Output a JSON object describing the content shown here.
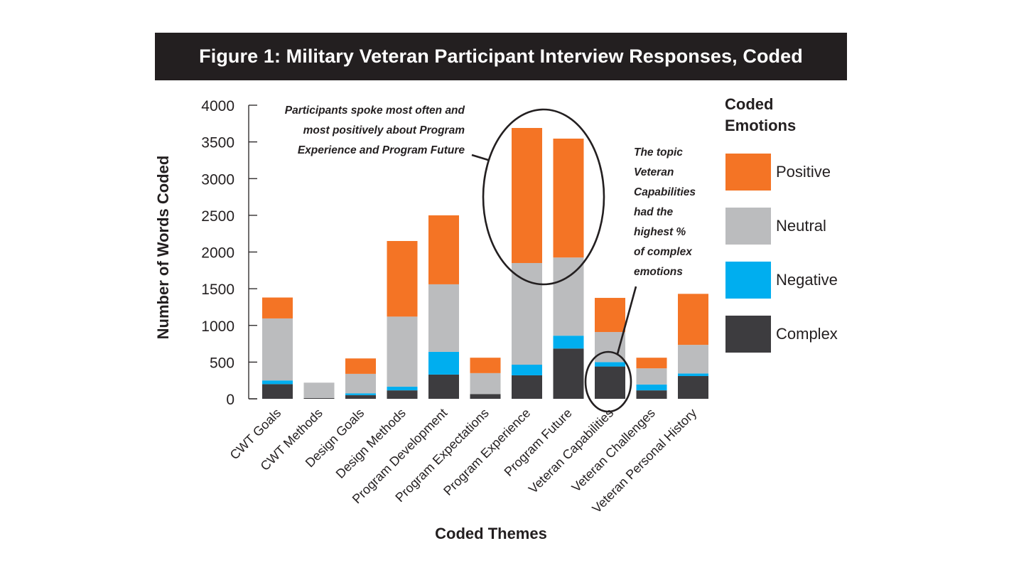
{
  "chart_data": {
    "type": "bar",
    "stacked": true,
    "title": "Figure 1: Military Veteran Participant Interview Responses, Coded",
    "xlabel": "Coded Themes",
    "ylabel": "Number of Words Coded",
    "ylim": [
      0,
      4000
    ],
    "yticks": [
      0,
      500,
      1000,
      1500,
      2000,
      2500,
      3000,
      3500,
      4000
    ],
    "grid": false,
    "categories": [
      "CWT Goals",
      "CWT Methods",
      "Design Goals",
      "Design Methods",
      "Program Development",
      "Program Expectations",
      "Program Experience",
      "Program Future",
      "Veteran Capabilities",
      "Veteran Challenges",
      "Veteran Personal History"
    ],
    "series": [
      {
        "name": "Complex",
        "color": "#3d3c3f",
        "values": [
          200,
          10,
          50,
          115,
          330,
          65,
          320,
          685,
          440,
          115,
          310
        ]
      },
      {
        "name": "Negative",
        "color": "#00aeef",
        "values": [
          50,
          0,
          25,
          50,
          310,
          0,
          145,
          175,
          60,
          80,
          35
        ]
      },
      {
        "name": "Neutral",
        "color": "#bbbcbe",
        "values": [
          845,
          210,
          265,
          955,
          920,
          285,
          1385,
          1065,
          410,
          220,
          390
        ]
      },
      {
        "name": "Positive",
        "color": "#f47425",
        "values": [
          285,
          0,
          210,
          1030,
          940,
          210,
          1840,
          1620,
          465,
          145,
          695
        ]
      }
    ],
    "legend": {
      "title_lines": [
        "Coded",
        "Emotions"
      ],
      "placement": "right",
      "order": [
        "Positive",
        "Neutral",
        "Negative",
        "Complex"
      ]
    },
    "annotations": [
      {
        "lines": [
          "Participants spoke most often and",
          "most positively about Program",
          "Experience and Program Future"
        ],
        "highlights": [
          "Program Experience",
          "Program Future"
        ]
      },
      {
        "lines": [
          "The topic",
          "Veteran",
          "Capabilities",
          "had the",
          "highest %",
          "of complex",
          "emotions"
        ],
        "highlights": [
          "Veteran Capabilities"
        ]
      }
    ]
  }
}
